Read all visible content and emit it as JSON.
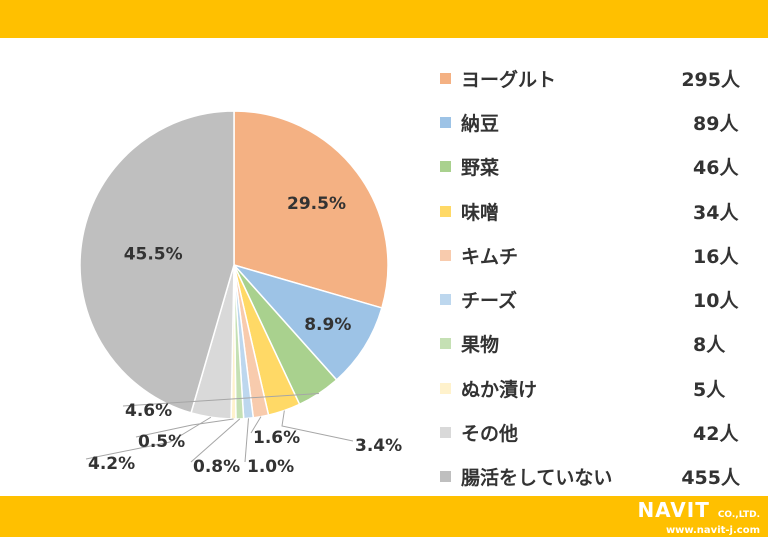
{
  "theme": {
    "accent": "#FFC000"
  },
  "chart_data": {
    "type": "pie",
    "start_angle_deg": 0,
    "direction": "clockwise",
    "legend_position": "right",
    "slices": [
      {
        "label": "ヨーグルト",
        "count": "295人",
        "value": 29.5,
        "pct_label": "29.5%",
        "color": "#F4B183"
      },
      {
        "label": "納豆",
        "count": "89人",
        "value": 8.9,
        "pct_label": "8.9%",
        "color": "#9DC3E6"
      },
      {
        "label": "野菜",
        "count": "46人",
        "value": 4.6,
        "pct_label": "4.6%",
        "color": "#A9D18E"
      },
      {
        "label": "味噌",
        "count": "34人",
        "value": 3.4,
        "pct_label": "3.4%",
        "color": "#FFD966"
      },
      {
        "label": "キムチ",
        "count": "16人",
        "value": 1.6,
        "pct_label": "1.6%",
        "color": "#F8CBAD"
      },
      {
        "label": "チーズ",
        "count": "10人",
        "value": 1.0,
        "pct_label": "1.0%",
        "color": "#BDD7EE"
      },
      {
        "label": "果物",
        "count": "8人",
        "value": 0.8,
        "pct_label": "0.8%",
        "color": "#C5E0B4"
      },
      {
        "label": "ぬか漬け",
        "count": "5人",
        "value": 0.5,
        "pct_label": "0.5%",
        "color": "#FFF2CC"
      },
      {
        "label": "その他",
        "count": "42人",
        "value": 4.2,
        "pct_label": "4.2%",
        "color": "#D9D9D9"
      },
      {
        "label": "腸活をしていない",
        "count": "455人",
        "value": 45.5,
        "pct_label": "45.5%",
        "color": "#BFBFBF"
      }
    ]
  },
  "logo": {
    "name": "NAVIT",
    "suffix": "CO.,LTD.",
    "url": "www.navit-j.com"
  }
}
